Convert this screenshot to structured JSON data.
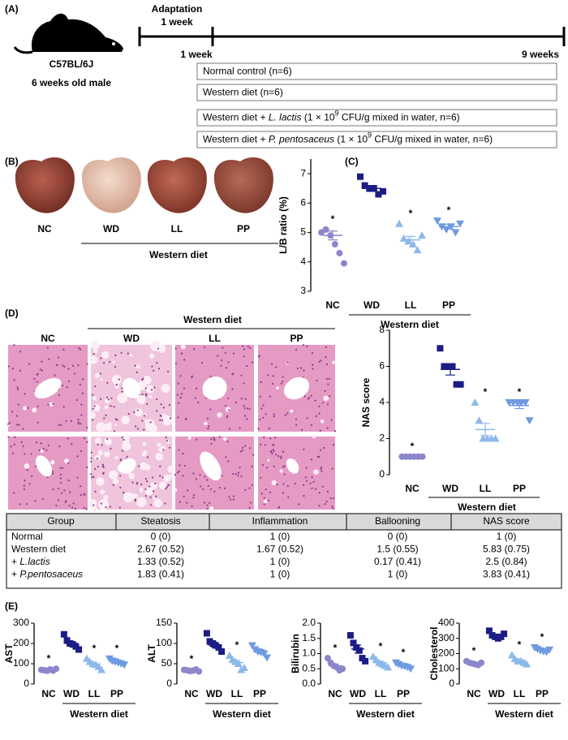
{
  "panel_a": {
    "label": "(A)",
    "strain": "C57BL/6J",
    "animal": "6 weeks old male",
    "adaptation": "Adaptation",
    "adaptation_duration": "1 week",
    "start": "1 week",
    "end": "9 weeks",
    "groups": [
      [
        "Normal control (n=6)"
      ],
      [
        "Western diet (n=6)"
      ],
      [
        "Western diet + ",
        "L. lactis",
        " (1 × 10",
        "9",
        " CFU/g mixed in water, n=6)"
      ],
      [
        "Western diet + ",
        "P. pentosaceus",
        " (1 × 10",
        "9",
        " CFU/g mixed in water, n=6)"
      ]
    ]
  },
  "panel_b": {
    "label": "(B)",
    "groups": [
      "NC",
      "WD",
      "LL",
      "PP"
    ],
    "group_label": "Western diet"
  },
  "panel_d": {
    "label": "(D)",
    "groups": [
      "NC",
      "WD",
      "LL",
      "PP"
    ],
    "group_label": "Western diet"
  },
  "panel_e": {
    "label": "(E)"
  },
  "table": {
    "header": [
      "Group",
      "Steatosis",
      "Inflammation",
      "Ballooning",
      "NAS score"
    ],
    "rows": [
      [
        "Normal",
        "0 (0)",
        "1 (0)",
        "0 (0)",
        "1 (0)"
      ],
      [
        "Western diet",
        "2.67 (0.52)",
        "1.67 (0.52)",
        "1.5 (0.55)",
        "5.83 (0.75)"
      ],
      [
        [
          "+ ",
          "L.lactis"
        ],
        "1.33 (0.52)",
        "1 (0)",
        "0.17 (0.41)",
        "2.5 (0.84)"
      ],
      [
        [
          "+ ",
          "P.pentosaceus"
        ],
        "1.83 (0.41)",
        "1 (0)",
        "1 (0)",
        "3.83 (0.41)"
      ]
    ]
  },
  "chart_data": [
    {
      "type": "dot",
      "panel": "(C)",
      "ylabel": "L/B ratio (%)",
      "categories": [
        "NC",
        "WD",
        "LL",
        "PP"
      ],
      "group_label": "Western diet",
      "colors": [
        "#8c86cc",
        "#1c1c86",
        "#8db8ea",
        "#6e9ae0"
      ],
      "markers": [
        "circle",
        "square",
        "triangle",
        "triangle-down"
      ],
      "points": [
        [
          5.0,
          5.1,
          4.9,
          4.6,
          4.3,
          3.95
        ],
        [
          6.9,
          6.6,
          6.5,
          6.5,
          6.3,
          6.4
        ],
        [
          5.3,
          4.8,
          4.7,
          4.6,
          4.4,
          4.9
        ],
        [
          5.4,
          5.2,
          5.1,
          5.2,
          5.0,
          5.3
        ]
      ],
      "means": [
        4.9,
        6.5,
        4.75,
        5.2
      ],
      "sems": [
        0.15,
        0.1,
        0.12,
        0.08
      ],
      "significance": [
        "*",
        null,
        "*",
        "*"
      ],
      "ylim": [
        3,
        7.5
      ],
      "yticks": [
        3,
        4,
        5,
        6,
        7
      ]
    },
    {
      "type": "dot",
      "ylabel": "NAS score",
      "categories": [
        "NC",
        "WD",
        "LL",
        "PP"
      ],
      "group_label": "Western diet",
      "colors": [
        "#8c86cc",
        "#1c1c86",
        "#8db8ea",
        "#6e9ae0"
      ],
      "markers": [
        "circle",
        "square",
        "triangle",
        "triangle-down"
      ],
      "points": [
        [
          1,
          1,
          1,
          1,
          1,
          1
        ],
        [
          7,
          6,
          6,
          6,
          5,
          5
        ],
        [
          4,
          3,
          2,
          2,
          2,
          2
        ],
        [
          4,
          4,
          4,
          4,
          4,
          3
        ]
      ],
      "means": [
        1,
        5.83,
        2.5,
        3.83
      ],
      "sems": [
        0,
        0.31,
        0.34,
        0.17
      ],
      "significance": [
        "*",
        null,
        "*",
        "*"
      ],
      "ylim": [
        0,
        8
      ],
      "yticks": [
        0,
        2,
        4,
        6,
        8
      ]
    },
    {
      "type": "dot",
      "ylabel": "AST",
      "categories": [
        "NC",
        "WD",
        "LL",
        "PP"
      ],
      "group_label": "Western diet",
      "colors": [
        "#8c86cc",
        "#1c1c86",
        "#8db8ea",
        "#6e9ae0"
      ],
      "markers": [
        "circle",
        "square",
        "triangle",
        "triangle-down"
      ],
      "points": [
        [
          70,
          68,
          65,
          72,
          66,
          75
        ],
        [
          245,
          215,
          200,
          195,
          185,
          170
        ],
        [
          125,
          110,
          100,
          95,
          85,
          70
        ],
        [
          125,
          115,
          110,
          105,
          100,
          95
        ]
      ],
      "means": [
        70,
        200,
        98,
        105
      ],
      "sems": [
        2,
        10,
        8,
        5
      ],
      "significance": [
        "*",
        null,
        "*",
        "*"
      ],
      "ylim": [
        0,
        300
      ],
      "yticks": [
        0,
        100,
        200,
        300
      ]
    },
    {
      "type": "dot",
      "ylabel": "ALT",
      "categories": [
        "NC",
        "WD",
        "LL",
        "PP"
      ],
      "group_label": "Western diet",
      "colors": [
        "#8c86cc",
        "#1c1c86",
        "#8db8ea",
        "#6e9ae0"
      ],
      "markers": [
        "circle",
        "square",
        "triangle",
        "triangle-down"
      ],
      "points": [
        [
          35,
          34,
          32,
          33,
          36,
          31
        ],
        [
          125,
          105,
          100,
          95,
          90,
          80
        ],
        [
          70,
          60,
          55,
          50,
          35,
          40
        ],
        [
          95,
          85,
          80,
          78,
          75,
          65
        ]
      ],
      "means": [
        34,
        97,
        53,
        80
      ],
      "sems": [
        1,
        6,
        5,
        5
      ],
      "significance": [
        "*",
        null,
        "*",
        null
      ],
      "ylim": [
        0,
        150
      ],
      "yticks": [
        0,
        50,
        100,
        150
      ]
    },
    {
      "type": "dot",
      "ylabel": "Bilirubin",
      "categories": [
        "NC",
        "WD",
        "LL",
        "PP"
      ],
      "group_label": "Western diet",
      "colors": [
        "#8c86cc",
        "#1c1c86",
        "#8db8ea",
        "#6e9ae0"
      ],
      "markers": [
        "circle",
        "square",
        "triangle",
        "triangle-down"
      ],
      "points": [
        [
          0.85,
          0.7,
          0.6,
          0.55,
          0.45,
          0.5
        ],
        [
          1.6,
          1.35,
          1.2,
          1.1,
          0.85,
          0.75
        ],
        [
          0.9,
          0.8,
          0.7,
          0.65,
          0.6,
          0.55
        ],
        [
          0.7,
          0.65,
          0.6,
          0.58,
          0.55,
          0.5
        ]
      ],
      "means": [
        0.6,
        1.15,
        0.7,
        0.6
      ],
      "sems": [
        0.06,
        0.13,
        0.05,
        0.03
      ],
      "significance": [
        "*",
        null,
        "*",
        "*"
      ],
      "ylim": [
        0,
        2
      ],
      "yticks": [
        {
          "value": 0,
          "label": "0.0"
        },
        0.5,
        {
          "value": 1,
          "label": "1.0"
        },
        1.5,
        {
          "value": 2,
          "label": "2.0"
        }
      ]
    },
    {
      "type": "dot",
      "ylabel": "Cholesterol",
      "categories": [
        "NC",
        "WD",
        "LL",
        "PP"
      ],
      "group_label": "Western diet",
      "colors": [
        "#8c86cc",
        "#1c1c86",
        "#8db8ea",
        "#6e9ae0"
      ],
      "markers": [
        "circle",
        "square",
        "triangle",
        "triangle-down"
      ],
      "points": [
        [
          150,
          140,
          135,
          130,
          125,
          140
        ],
        [
          350,
          320,
          310,
          300,
          310,
          330
        ],
        [
          190,
          165,
          150,
          150,
          140,
          130
        ],
        [
          240,
          230,
          220,
          215,
          210,
          225
        ]
      ],
      "means": [
        135,
        315,
        155,
        222
      ],
      "sems": [
        4,
        8,
        9,
        5
      ],
      "significance": [
        "*",
        null,
        "*",
        "*"
      ],
      "ylim": [
        0,
        400
      ],
      "yticks": [
        0,
        100,
        200,
        300,
        400
      ]
    }
  ]
}
